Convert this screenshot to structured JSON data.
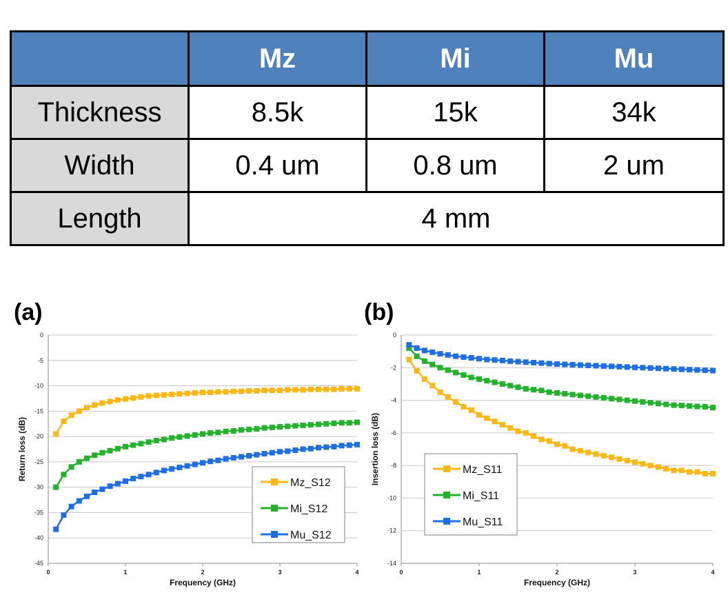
{
  "table": {
    "header": [
      "",
      "Mz",
      "Mi",
      "Mu"
    ],
    "rows": [
      {
        "label": "Thickness",
        "cells": [
          "8.5k",
          "15k",
          "34k"
        ]
      },
      {
        "label": "Width",
        "cells": [
          "0.4 um",
          "0.8 um",
          "2 um"
        ]
      },
      {
        "label": "Length",
        "cells": [
          "4 mm"
        ]
      }
    ]
  },
  "chart_data": [
    {
      "type": "line",
      "panel": "(a)",
      "title": "",
      "xlabel": "Frequency (GHz)",
      "ylabel": "Return loss (dB)",
      "xlim": [
        0,
        4
      ],
      "ylim": [
        -45,
        0
      ],
      "xticks": [
        0,
        1,
        2,
        3,
        4
      ],
      "yticks": [
        0,
        -5,
        -10,
        -15,
        -20,
        -25,
        -30,
        -35,
        -40,
        -45
      ],
      "grid": "horizontal",
      "legend": "bottom-right",
      "markers": "square",
      "x": [
        0.1,
        0.2,
        0.3,
        0.4,
        0.5,
        0.6,
        0.7,
        0.8,
        0.9,
        1.0,
        1.1,
        1.2,
        1.3,
        1.4,
        1.5,
        1.6,
        1.7,
        1.8,
        1.9,
        2.0,
        2.1,
        2.2,
        2.3,
        2.4,
        2.5,
        2.6,
        2.7,
        2.8,
        2.9,
        3.0,
        3.1,
        3.2,
        3.3,
        3.4,
        3.5,
        3.6,
        3.7,
        3.8,
        3.9,
        4.0
      ],
      "series": [
        {
          "name": "Mz_S12",
          "color": "#fbb714",
          "values": [
            -19.5,
            -17.0,
            -15.8,
            -15.0,
            -14.3,
            -13.8,
            -13.4,
            -13.1,
            -12.8,
            -12.6,
            -12.4,
            -12.2,
            -12.0,
            -11.9,
            -11.8,
            -11.7,
            -11.6,
            -11.5,
            -11.4,
            -11.3,
            -11.3,
            -11.2,
            -11.2,
            -11.1,
            -11.1,
            -11.0,
            -11.0,
            -10.9,
            -10.9,
            -10.9,
            -10.8,
            -10.8,
            -10.8,
            -10.7,
            -10.7,
            -10.7,
            -10.7,
            -10.6,
            -10.6,
            -10.6
          ]
        },
        {
          "name": "Mi_S12",
          "color": "#24b22d",
          "values": [
            -30.0,
            -27.5,
            -26.0,
            -25.0,
            -24.3,
            -23.7,
            -23.2,
            -22.8,
            -22.4,
            -22.0,
            -21.7,
            -21.4,
            -21.1,
            -20.8,
            -20.6,
            -20.3,
            -20.1,
            -19.9,
            -19.7,
            -19.5,
            -19.3,
            -19.2,
            -19.0,
            -18.9,
            -18.7,
            -18.6,
            -18.5,
            -18.3,
            -18.2,
            -18.1,
            -18.0,
            -17.9,
            -17.8,
            -17.7,
            -17.6,
            -17.5,
            -17.4,
            -17.3,
            -17.3,
            -17.2
          ]
        },
        {
          "name": "Mu_S12",
          "color": "#1f6fe0",
          "values": [
            -38.3,
            -35.5,
            -33.8,
            -32.7,
            -31.8,
            -31.0,
            -30.4,
            -29.8,
            -29.3,
            -28.8,
            -28.3,
            -27.9,
            -27.5,
            -27.1,
            -26.7,
            -26.4,
            -26.1,
            -25.8,
            -25.5,
            -25.2,
            -24.9,
            -24.7,
            -24.4,
            -24.2,
            -24.0,
            -23.8,
            -23.6,
            -23.4,
            -23.2,
            -23.0,
            -22.9,
            -22.7,
            -22.5,
            -22.4,
            -22.2,
            -22.1,
            -22.0,
            -21.8,
            -21.7,
            -21.6
          ]
        }
      ]
    },
    {
      "type": "line",
      "panel": "(b)",
      "title": "",
      "xlabel": "Frequency (GHz)",
      "ylabel": "Insertion loss (dB)",
      "xlim": [
        0,
        4
      ],
      "ylim": [
        -14,
        0
      ],
      "xticks": [
        0,
        1,
        2,
        3,
        4
      ],
      "yticks": [
        0,
        -2,
        -4,
        -6,
        -8,
        -10,
        -12,
        -14
      ],
      "grid": "horizontal",
      "legend": "bottom-left",
      "markers": "square",
      "x": [
        0.1,
        0.2,
        0.3,
        0.4,
        0.5,
        0.6,
        0.7,
        0.8,
        0.9,
        1.0,
        1.1,
        1.2,
        1.3,
        1.4,
        1.5,
        1.6,
        1.7,
        1.8,
        1.9,
        2.0,
        2.1,
        2.2,
        2.3,
        2.4,
        2.5,
        2.6,
        2.7,
        2.8,
        2.9,
        3.0,
        3.1,
        3.2,
        3.3,
        3.4,
        3.5,
        3.6,
        3.7,
        3.8,
        3.9,
        4.0
      ],
      "series": [
        {
          "name": "Mz_S11",
          "color": "#fbb714",
          "values": [
            -1.5,
            -2.2,
            -2.7,
            -3.1,
            -3.5,
            -3.8,
            -4.1,
            -4.4,
            -4.6,
            -4.9,
            -5.1,
            -5.3,
            -5.5,
            -5.7,
            -5.9,
            -6.0,
            -6.2,
            -6.4,
            -6.5,
            -6.7,
            -6.8,
            -7.0,
            -7.1,
            -7.2,
            -7.3,
            -7.4,
            -7.5,
            -7.6,
            -7.7,
            -7.8,
            -7.9,
            -8.0,
            -8.1,
            -8.2,
            -8.3,
            -8.3,
            -8.4,
            -8.4,
            -8.5,
            -8.5
          ]
        },
        {
          "name": "Mi_S11",
          "color": "#24b22d",
          "values": [
            -0.8,
            -1.3,
            -1.6,
            -1.8,
            -2.0,
            -2.15,
            -2.3,
            -2.45,
            -2.6,
            -2.7,
            -2.8,
            -2.9,
            -3.0,
            -3.1,
            -3.2,
            -3.3,
            -3.35,
            -3.4,
            -3.5,
            -3.55,
            -3.6,
            -3.65,
            -3.7,
            -3.75,
            -3.8,
            -3.85,
            -3.9,
            -3.95,
            -4.0,
            -4.05,
            -4.1,
            -4.15,
            -4.2,
            -4.25,
            -4.3,
            -4.32,
            -4.35,
            -4.38,
            -4.4,
            -4.45
          ]
        },
        {
          "name": "Mu_S11",
          "color": "#1f6fe0",
          "values": [
            -0.6,
            -0.8,
            -0.95,
            -1.05,
            -1.15,
            -1.22,
            -1.3,
            -1.35,
            -1.4,
            -1.45,
            -1.5,
            -1.53,
            -1.56,
            -1.6,
            -1.63,
            -1.66,
            -1.69,
            -1.72,
            -1.75,
            -1.78,
            -1.8,
            -1.82,
            -1.84,
            -1.86,
            -1.88,
            -1.9,
            -1.92,
            -1.94,
            -1.96,
            -1.98,
            -2.0,
            -2.02,
            -2.04,
            -2.06,
            -2.08,
            -2.1,
            -2.12,
            -2.14,
            -2.16,
            -2.18
          ]
        }
      ]
    }
  ]
}
